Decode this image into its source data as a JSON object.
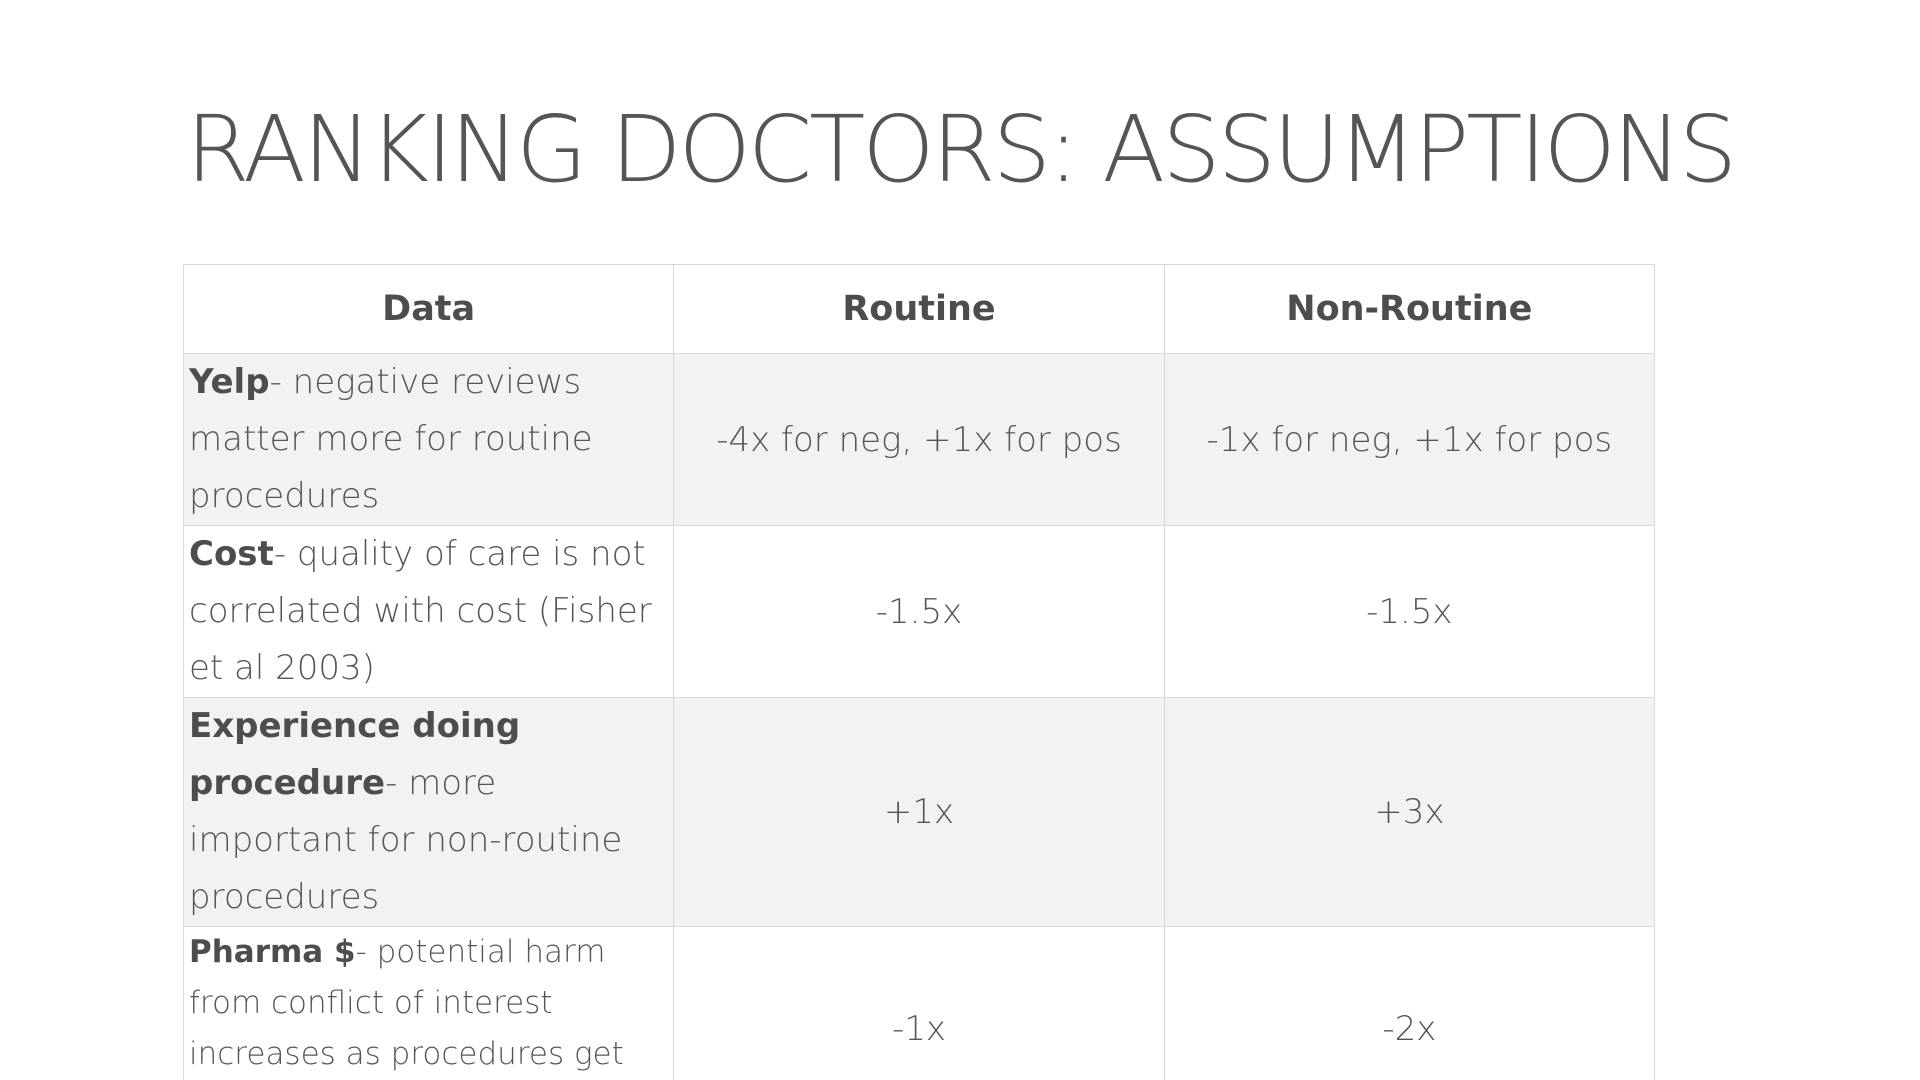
{
  "slide": {
    "title": "RANKING DOCTORS: ASSUMPTIONS"
  },
  "table": {
    "headers": [
      "Data",
      "Routine",
      "Non-Routine"
    ],
    "rows": [
      {
        "label": "Yelp",
        "description": "- negative reviews matter more for routine procedures",
        "routine": "-4x for neg, +1x for pos",
        "non_routine": "-1x for neg, +1x for pos"
      },
      {
        "label": "Cost",
        "description": "- quality of care is not correlated with cost (Fisher et al 2003)",
        "routine": "-1.5x",
        "non_routine": "-1.5x"
      },
      {
        "label": "Experience doing procedure",
        "description": "- more important for non-routine procedures",
        "routine": "+1x",
        "non_routine": "+3x"
      },
      {
        "label": "Pharma $",
        "description": "- potential harm from conflict of interest increases as procedures get more costly",
        "routine": "-1x",
        "non_routine": "-2x"
      }
    ]
  }
}
